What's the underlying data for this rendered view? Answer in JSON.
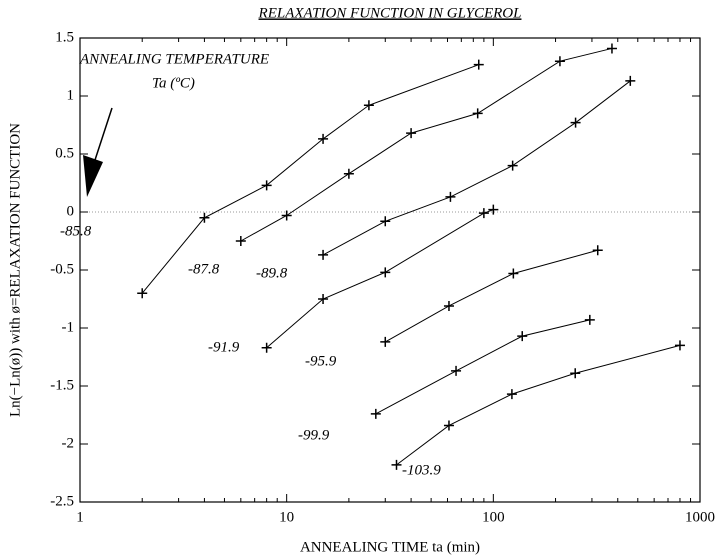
{
  "chart_data": {
    "type": "line",
    "title": "RELAXATION FUNCTION IN GLYCEROL",
    "xlabel": "ANNEALING TIME ta (min)",
    "ylabel": "Ln(−Ln(ø)) with ø=RELAXATION FUNCTION",
    "annotation": [
      "ANNEALING TEMPERATURE",
      "Ta (ºC)"
    ],
    "xscale": "log",
    "xlim": [
      1,
      1000
    ],
    "xticks": [
      1,
      10,
      100,
      1000
    ],
    "ylim": [
      -2.5,
      1.5
    ],
    "yticks": [
      -2.5,
      -2,
      -1.5,
      -1,
      -0.5,
      0,
      0.5,
      1,
      1.5
    ],
    "hline": 0,
    "color": "#000000",
    "series": [
      {
        "name": "-85.8",
        "x": [
          2,
          4,
          8,
          15,
          25,
          85
        ],
        "values": [
          -0.7,
          -0.05,
          0.23,
          0.63,
          0.92,
          1.27
        ]
      },
      {
        "name": "-87.8",
        "x": [
          6,
          10,
          20,
          40,
          84,
          210,
          375
        ],
        "values": [
          -0.25,
          -0.03,
          0.33,
          0.68,
          0.85,
          1.3,
          1.41
        ]
      },
      {
        "name": "-89.8",
        "x": [
          15,
          30,
          62,
          124,
          250,
          460
        ],
        "values": [
          -0.37,
          -0.08,
          0.13,
          0.4,
          0.77,
          1.13
        ]
      },
      {
        "name": "-91.9",
        "x": [
          8,
          15,
          30,
          90,
          100
        ],
        "values": [
          -1.17,
          -0.75,
          -0.52,
          -0.01,
          0.02
        ]
      },
      {
        "name": "-95.9",
        "x": [
          30,
          61,
          125,
          320
        ],
        "values": [
          -1.12,
          -0.81,
          -0.53,
          -0.33
        ]
      },
      {
        "name": "-99.9",
        "x": [
          27,
          66,
          138,
          293
        ],
        "values": [
          -1.74,
          -1.37,
          -1.07,
          -0.93
        ]
      },
      {
        "name": "-103.9",
        "x": [
          34,
          61,
          123,
          249,
          800
        ],
        "values": [
          -2.18,
          -1.84,
          -1.57,
          -1.39,
          -1.15
        ]
      }
    ]
  }
}
